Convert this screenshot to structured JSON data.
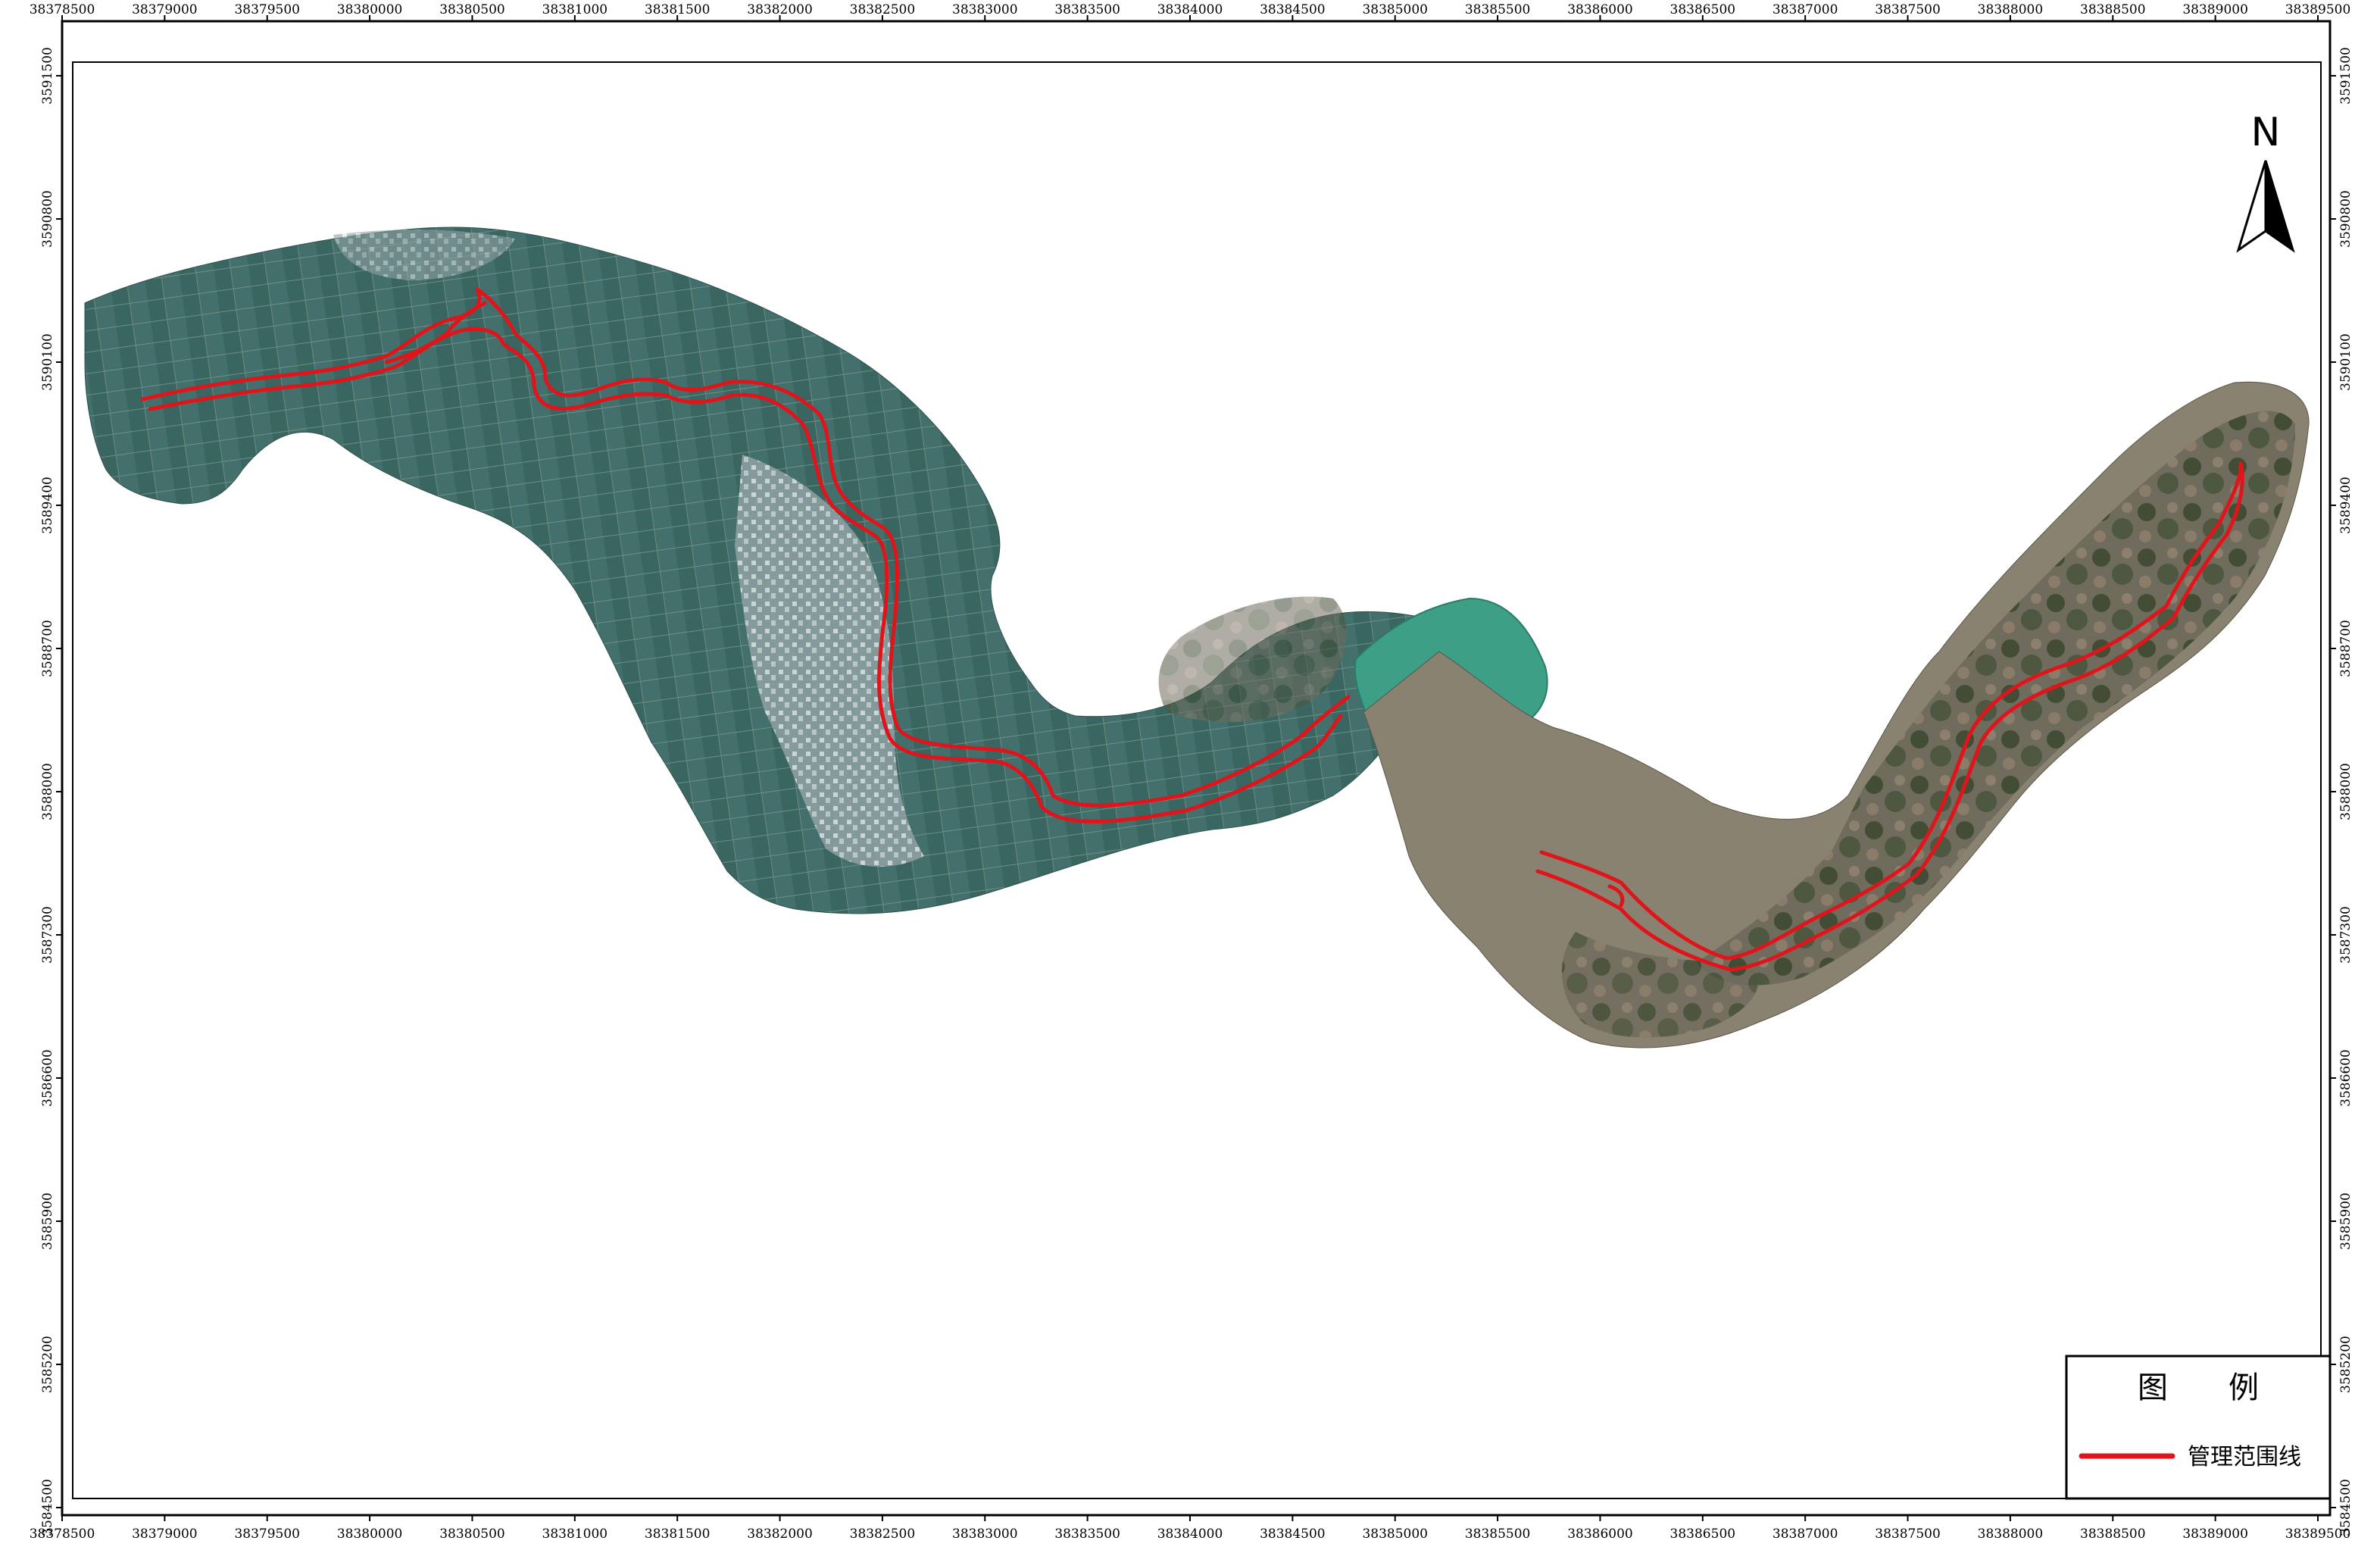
{
  "map": {
    "x_ticks": [
      "38378500",
      "38379000",
      "38379500",
      "38380000",
      "38380500",
      "38381000",
      "38381500",
      "38382000",
      "38382500",
      "38383000",
      "38383500",
      "38384000",
      "38384500",
      "38385000",
      "38385500",
      "38386000",
      "38386500",
      "38387000",
      "38387500",
      "38388000",
      "38388500",
      "38389000",
      "38389500"
    ],
    "y_ticks": [
      "3591500",
      "3590800",
      "3590100",
      "3589400",
      "3588700",
      "3588000",
      "3587300",
      "3586600",
      "3585900",
      "3585200",
      "3584500"
    ],
    "north_label": "N",
    "legend": {
      "title": "图　　例",
      "items": [
        {
          "label": "管理范围线",
          "color": "#e0141b"
        }
      ]
    },
    "colors": {
      "boundary_line": "#e0141b",
      "farmland": "#3f6e6b",
      "reservoir": "#3c9f86",
      "mountain": "#4a5a3c",
      "frame": "#000000"
    }
  }
}
